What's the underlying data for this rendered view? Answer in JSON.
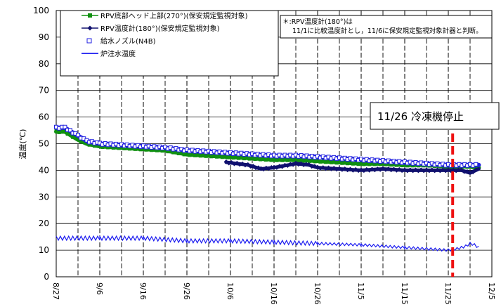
{
  "chart_data": {
    "type": "line",
    "ylabel": "温度(℃)",
    "ylim": [
      0,
      100
    ],
    "yticks": [
      0,
      10,
      20,
      30,
      40,
      50,
      60,
      70,
      80,
      90,
      100
    ],
    "xlim": [
      "8/27",
      "12/5"
    ],
    "xticks": [
      "8/27",
      "9/6",
      "9/16",
      "9/26",
      "10/6",
      "10/16",
      "10/26",
      "11/5",
      "11/15",
      "11/25",
      "12/5"
    ],
    "grid": true,
    "legend_position": "top-left",
    "series": [
      {
        "name": "RPV底部ヘッド上部(270°)(保安規定監視対象)",
        "color": "#109010",
        "marker": "square",
        "points": [
          [
            "8/27",
            54.5
          ],
          [
            "8/29",
            54.5
          ],
          [
            "9/1",
            51.5
          ],
          [
            "9/3",
            50
          ],
          [
            "9/6",
            49
          ],
          [
            "9/11",
            48.5
          ],
          [
            "9/16",
            48
          ],
          [
            "9/21",
            47.5
          ],
          [
            "9/26",
            46
          ],
          [
            "10/1",
            45.5
          ],
          [
            "10/6",
            45
          ],
          [
            "10/11",
            44.5
          ],
          [
            "10/16",
            44
          ],
          [
            "10/21",
            44
          ],
          [
            "10/26",
            43.5
          ],
          [
            "10/31",
            43
          ],
          [
            "11/5",
            42.5
          ],
          [
            "11/10",
            42.5
          ],
          [
            "11/15",
            42
          ],
          [
            "11/20",
            42
          ],
          [
            "11/25",
            41.5
          ],
          [
            "11/30",
            41.5
          ],
          [
            "12/2",
            41
          ]
        ]
      },
      {
        "name": "RPV温度計(180°)(保安規定監視対象)",
        "color": "#10106e",
        "marker": "diamond",
        "points": [
          [
            "10/5",
            43
          ],
          [
            "10/10",
            42
          ],
          [
            "10/13",
            40.5
          ],
          [
            "10/16",
            41
          ],
          [
            "10/21",
            42.5
          ],
          [
            "10/24",
            42
          ],
          [
            "10/26",
            41
          ],
          [
            "10/31",
            40.5
          ],
          [
            "11/5",
            40
          ],
          [
            "11/10",
            40.5
          ],
          [
            "11/15",
            40
          ],
          [
            "11/20",
            40
          ],
          [
            "11/25",
            40
          ],
          [
            "11/28",
            40
          ],
          [
            "11/30",
            39
          ],
          [
            "12/2",
            40.5
          ]
        ]
      },
      {
        "name": "給水ノズル(N4B)",
        "color": "#2020e0",
        "marker": "square-open",
        "points": [
          [
            "8/27",
            56
          ],
          [
            "8/29",
            56
          ],
          [
            "9/1",
            53
          ],
          [
            "9/3",
            51
          ],
          [
            "9/6",
            50
          ],
          [
            "9/11",
            49.5
          ],
          [
            "9/16",
            49
          ],
          [
            "9/21",
            48.5
          ],
          [
            "9/26",
            47.5
          ],
          [
            "10/1",
            47
          ],
          [
            "10/6",
            46.5
          ],
          [
            "10/11",
            46
          ],
          [
            "10/16",
            45.5
          ],
          [
            "10/21",
            45.5
          ],
          [
            "10/26",
            45
          ],
          [
            "10/31",
            44.5
          ],
          [
            "11/5",
            44
          ],
          [
            "11/10",
            43.5
          ],
          [
            "11/15",
            43
          ],
          [
            "11/20",
            42.5
          ],
          [
            "11/25",
            42
          ],
          [
            "11/30",
            42
          ],
          [
            "12/2",
            42
          ]
        ]
      },
      {
        "name": "炉注水温度",
        "color": "#1a1af0",
        "marker": "none",
        "points": [
          [
            "8/27",
            14.5
          ],
          [
            "9/6",
            14.5
          ],
          [
            "9/16",
            14.5
          ],
          [
            "9/26",
            13.5
          ],
          [
            "10/6",
            13.5
          ],
          [
            "10/16",
            13
          ],
          [
            "10/26",
            12.5
          ],
          [
            "11/5",
            12
          ],
          [
            "11/15",
            11
          ],
          [
            "11/20",
            10.5
          ],
          [
            "11/25",
            10
          ],
          [
            "11/27",
            10.5
          ],
          [
            "11/29",
            11.5
          ],
          [
            "11/30",
            12.5
          ],
          [
            "12/1",
            12
          ],
          [
            "12/2",
            11
          ]
        ]
      }
    ],
    "annotations": {
      "note_line1": "＊:RPV温度計(180°)は",
      "note_line2": "11/1に比較温度計とし，11/6に保安規定監視対象計器と判断。",
      "event_label": "11/26 冷凍機停止",
      "event_date": "11/26",
      "event_color": "#ee1111"
    }
  }
}
